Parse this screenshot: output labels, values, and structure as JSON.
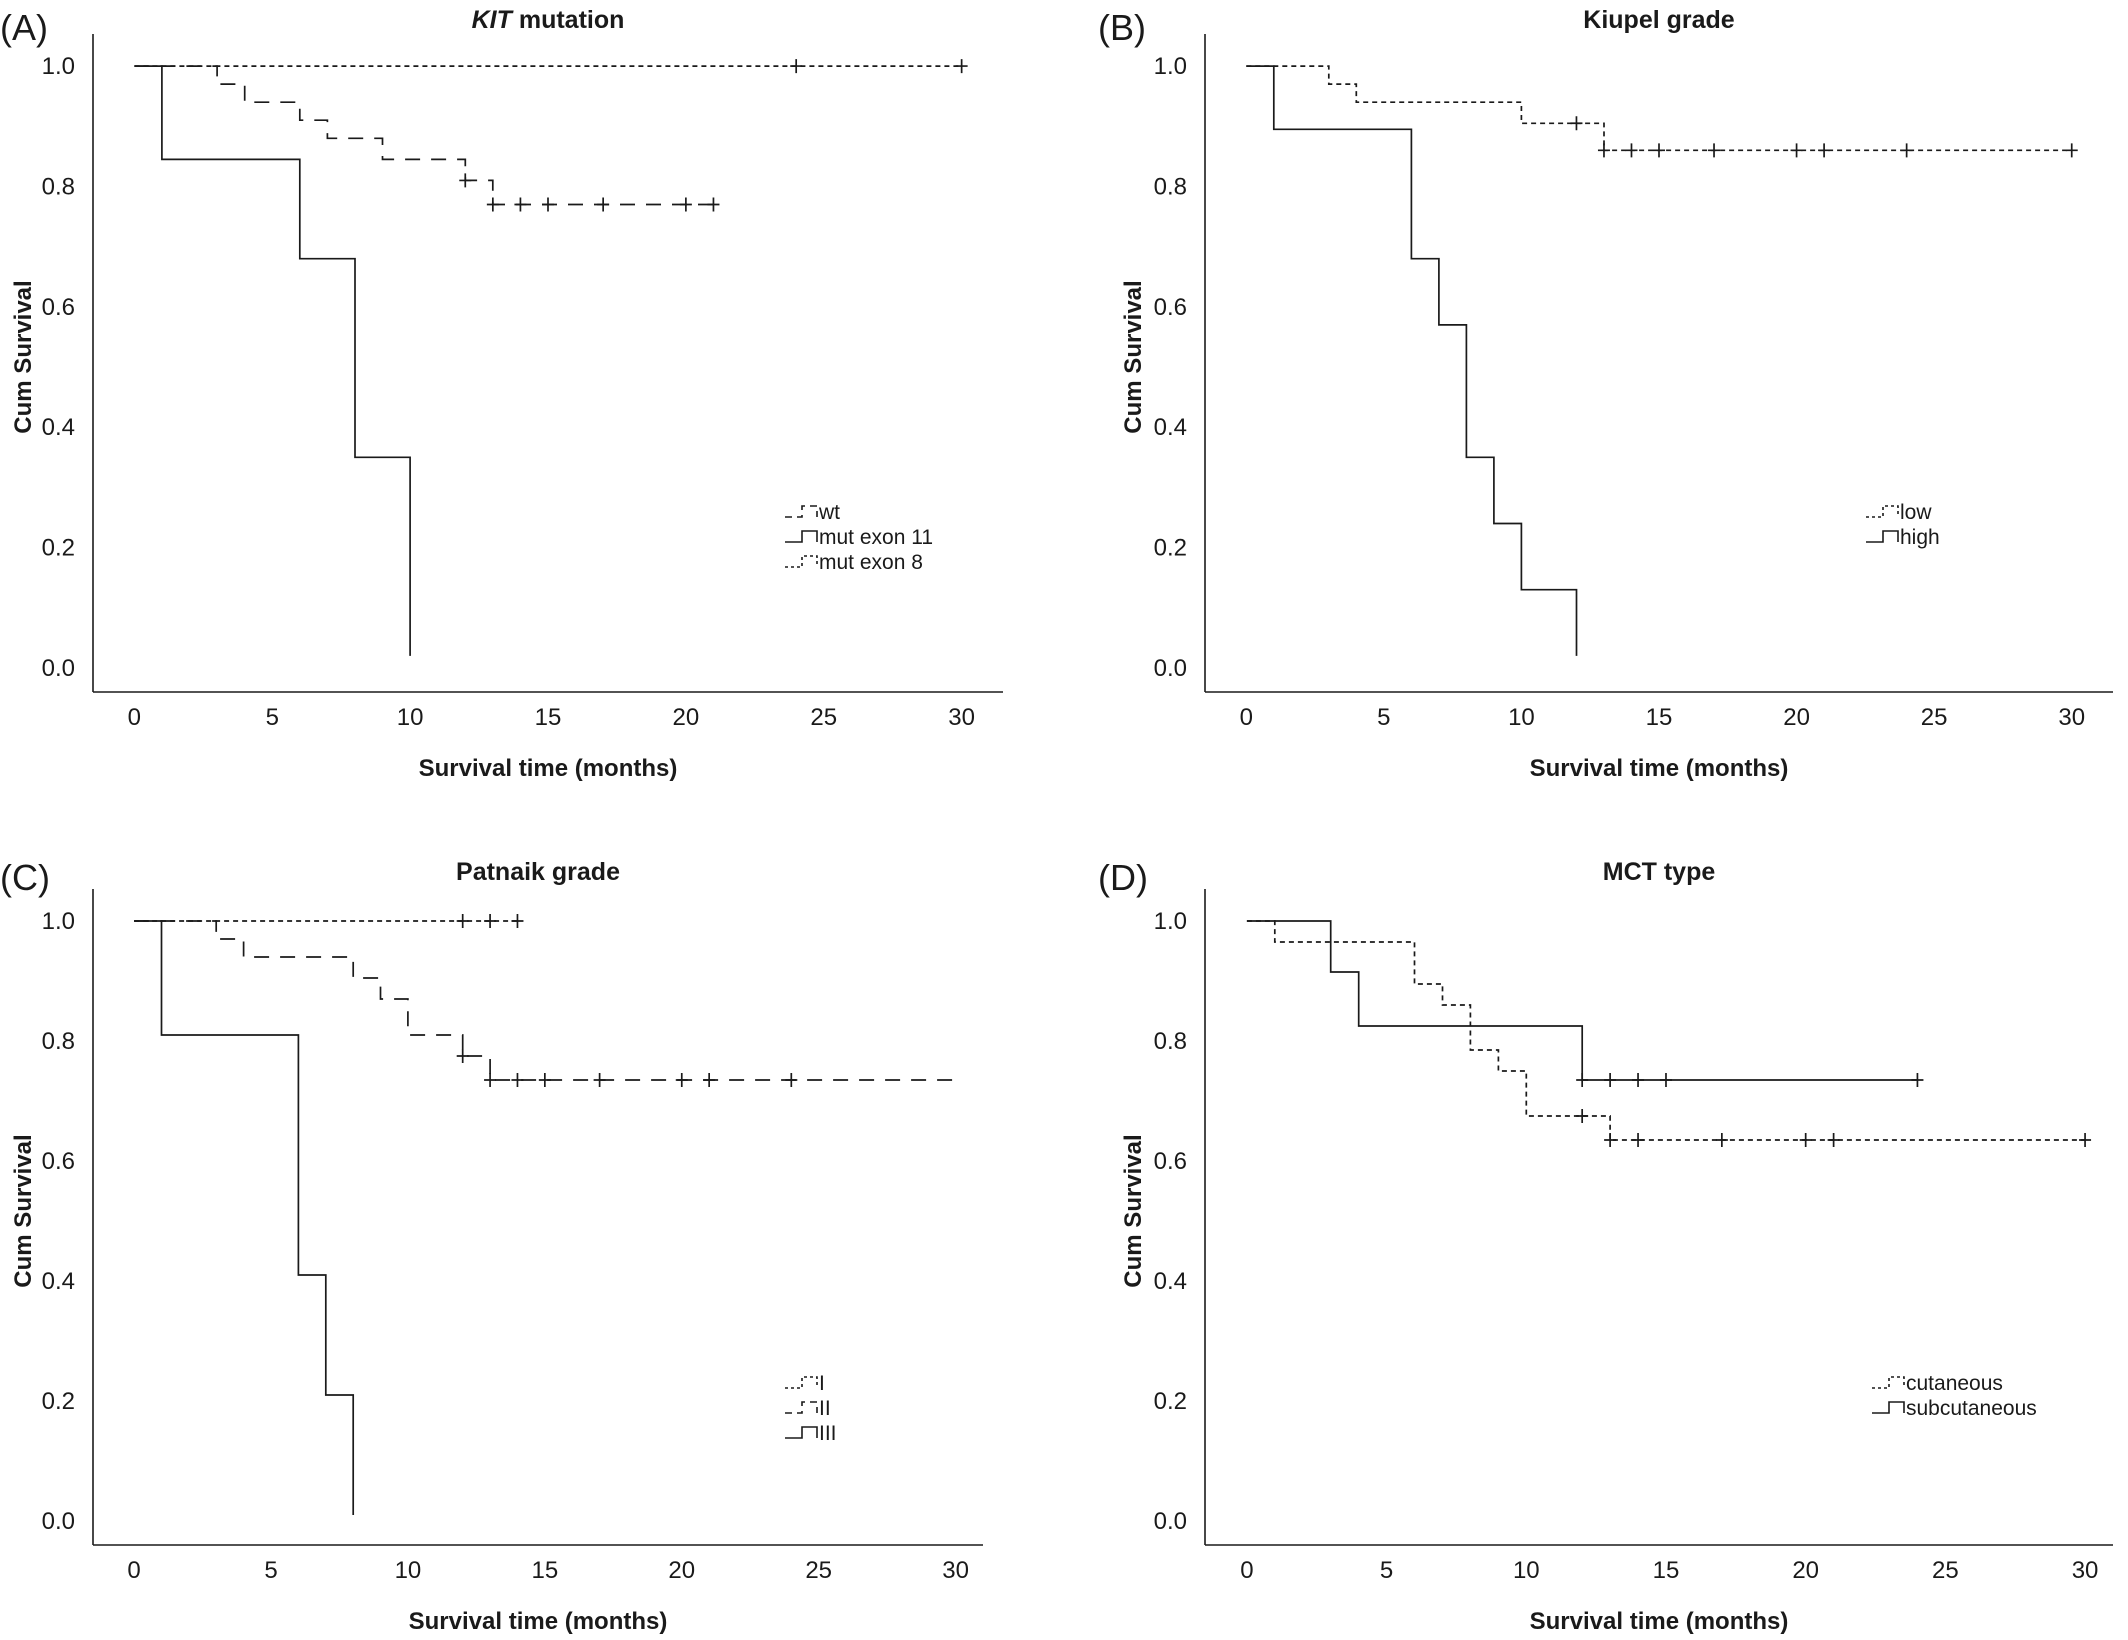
{
  "chart_data": [
    {
      "type": "line",
      "panel": "(A)",
      "title_italic": "KIT",
      "title": " mutation",
      "xlabel": "Survival time (months)",
      "ylabel": "Cum Survival",
      "xlim": [
        -1.5,
        31.5
      ],
      "ylim": [
        -0.04,
        1.04
      ],
      "xticks": [
        "0",
        "5",
        "10",
        "15",
        "20",
        "25",
        "30"
      ],
      "yticks": [
        "0.0",
        "0.2",
        "0.4",
        "0.6",
        "0.8",
        "1.0"
      ],
      "legend": "right-lower",
      "series": [
        {
          "name": "wt",
          "dash": "long",
          "steps": [
            [
              0,
              1.0
            ],
            [
              3,
              0.97
            ],
            [
              4,
              0.94
            ],
            [
              6,
              0.91
            ],
            [
              7,
              0.88
            ],
            [
              9,
              0.845
            ],
            [
              12,
              0.81
            ],
            [
              13,
              0.77
            ],
            [
              21,
              0.77
            ]
          ],
          "censored": [
            [
              12,
              0.81
            ],
            [
              13,
              0.77
            ],
            [
              14,
              0.77
            ],
            [
              15,
              0.77
            ],
            [
              17,
              0.77
            ],
            [
              20,
              0.77
            ],
            [
              21,
              0.77
            ]
          ]
        },
        {
          "name": "mut exon 11",
          "dash": "solid",
          "steps": [
            [
              0,
              1.0
            ],
            [
              1,
              0.845
            ],
            [
              6,
              0.68
            ],
            [
              8,
              0.35
            ],
            [
              10,
              0.02
            ]
          ],
          "censored": []
        },
        {
          "name": "mut exon 8",
          "dash": "short",
          "steps": [
            [
              0,
              1.0
            ],
            [
              30,
              1.0
            ]
          ],
          "censored": [
            [
              24,
              1.0
            ],
            [
              30,
              1.0
            ]
          ]
        }
      ]
    },
    {
      "type": "line",
      "panel": "(B)",
      "title": "Kiupel grade",
      "xlabel": "Survival time (months)",
      "ylabel": "Cum Survival",
      "xlim": [
        -1.5,
        31.5
      ],
      "ylim": [
        -0.04,
        1.04
      ],
      "xticks": [
        "0",
        "5",
        "10",
        "15",
        "20",
        "25",
        "30"
      ],
      "yticks": [
        "0.0",
        "0.2",
        "0.4",
        "0.6",
        "0.8",
        "1.0"
      ],
      "legend": "right-lower",
      "series": [
        {
          "name": "low",
          "dash": "short",
          "steps": [
            [
              0,
              1.0
            ],
            [
              3,
              0.97
            ],
            [
              4,
              0.94
            ],
            [
              10,
              0.905
            ],
            [
              13,
              0.86
            ],
            [
              30,
              0.86
            ]
          ],
          "censored": [
            [
              12,
              0.905
            ],
            [
              13,
              0.86
            ],
            [
              14,
              0.86
            ],
            [
              15,
              0.86
            ],
            [
              17,
              0.86
            ],
            [
              20,
              0.86
            ],
            [
              21,
              0.86
            ],
            [
              24,
              0.86
            ],
            [
              30,
              0.86
            ]
          ]
        },
        {
          "name": "high",
          "dash": "solid",
          "steps": [
            [
              0,
              1.0
            ],
            [
              1,
              0.895
            ],
            [
              6,
              0.68
            ],
            [
              7,
              0.57
            ],
            [
              8,
              0.35
            ],
            [
              9,
              0.24
            ],
            [
              10,
              0.13
            ],
            [
              12,
              0.02
            ]
          ],
          "censored": []
        }
      ]
    },
    {
      "type": "line",
      "panel": "(C)",
      "title": "Patnaik grade",
      "xlabel": "Survival time (months)",
      "ylabel": "Cum Survival",
      "xlim": [
        -1.5,
        31.0
      ],
      "ylim": [
        -0.04,
        1.04
      ],
      "xticks": [
        "0",
        "5",
        "10",
        "15",
        "20",
        "25",
        "30"
      ],
      "yticks": [
        "0.0",
        "0.2",
        "0.4",
        "0.6",
        "0.8",
        "1.0"
      ],
      "legend": "right-lower",
      "series": [
        {
          "name": "I",
          "dash": "short",
          "steps": [
            [
              0,
              1.0
            ],
            [
              14,
              1.0
            ]
          ],
          "censored": [
            [
              12,
              1.0
            ],
            [
              13,
              1.0
            ],
            [
              14,
              1.0
            ]
          ]
        },
        {
          "name": "II",
          "dash": "long",
          "steps": [
            [
              0,
              1.0
            ],
            [
              3,
              0.97
            ],
            [
              4,
              0.94
            ],
            [
              8,
              0.905
            ],
            [
              9,
              0.87
            ],
            [
              10,
              0.81
            ],
            [
              12,
              0.775
            ],
            [
              13,
              0.735
            ],
            [
              30,
              0.735
            ]
          ],
          "censored": [
            [
              12,
              0.775
            ],
            [
              13,
              0.735
            ],
            [
              14,
              0.735
            ],
            [
              15,
              0.735
            ],
            [
              17,
              0.735
            ],
            [
              20,
              0.735
            ],
            [
              21,
              0.735
            ],
            [
              24,
              0.735
            ]
          ]
        },
        {
          "name": "III",
          "dash": "solid",
          "steps": [
            [
              0,
              1.0
            ],
            [
              1,
              0.81
            ],
            [
              6,
              0.41
            ],
            [
              7,
              0.21
            ],
            [
              8,
              0.01
            ]
          ],
          "censored": []
        }
      ]
    },
    {
      "type": "line",
      "panel": "(D)",
      "title": "MCT type",
      "xlabel": "Survival time (months)",
      "ylabel": "Cum Survival",
      "xlim": [
        -1.5,
        31.0
      ],
      "ylim": [
        -0.04,
        1.04
      ],
      "xticks": [
        "0",
        "5",
        "10",
        "15",
        "20",
        "25",
        "30"
      ],
      "yticks": [
        "0.0",
        "0.2",
        "0.4",
        "0.6",
        "0.8",
        "1.0"
      ],
      "legend": "right-lower",
      "series": [
        {
          "name": "cutaneous",
          "dash": "short",
          "steps": [
            [
              0,
              1.0
            ],
            [
              1,
              0.965
            ],
            [
              6,
              0.895
            ],
            [
              7,
              0.86
            ],
            [
              8,
              0.785
            ],
            [
              9,
              0.75
            ],
            [
              10,
              0.675
            ],
            [
              13,
              0.635
            ],
            [
              30,
              0.635
            ]
          ],
          "censored": [
            [
              12,
              0.675
            ],
            [
              13,
              0.635
            ],
            [
              14,
              0.635
            ],
            [
              17,
              0.635
            ],
            [
              20,
              0.635
            ],
            [
              21,
              0.635
            ],
            [
              30,
              0.635
            ]
          ]
        },
        {
          "name": "subcutaneous",
          "dash": "solid",
          "steps": [
            [
              0,
              1.0
            ],
            [
              3,
              0.915
            ],
            [
              4,
              0.825
            ],
            [
              12,
              0.735
            ],
            [
              24,
              0.735
            ]
          ],
          "censored": [
            [
              12,
              0.735
            ],
            [
              13,
              0.735
            ],
            [
              14,
              0.735
            ],
            [
              15,
              0.735
            ],
            [
              24,
              0.735
            ]
          ]
        }
      ]
    }
  ]
}
